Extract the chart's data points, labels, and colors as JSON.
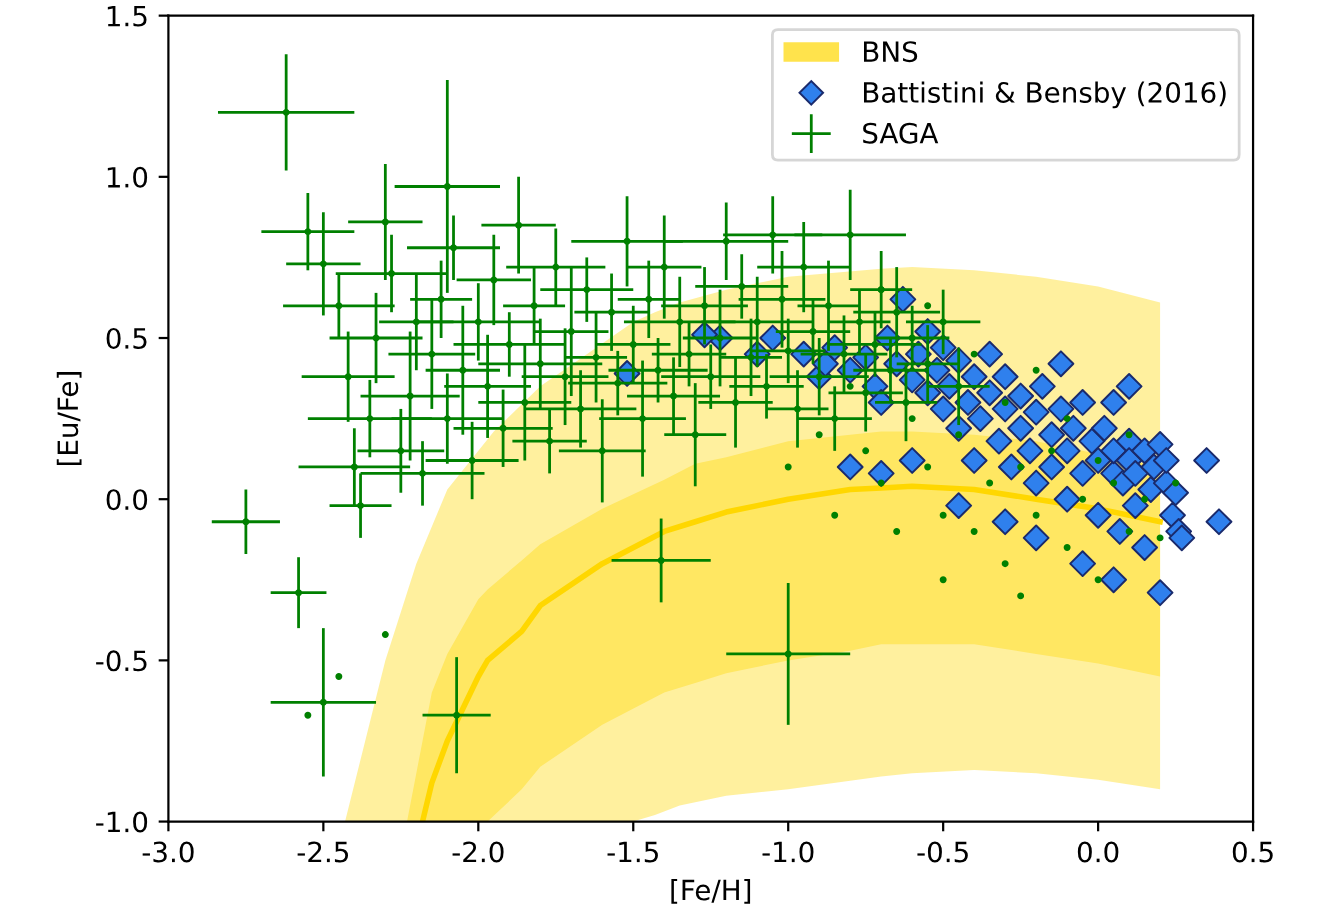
{
  "chart_data": {
    "type": "scatter",
    "xlabel": "[Fe/H]",
    "ylabel": "[Eu/Fe]",
    "xlim": [
      -3.0,
      0.5
    ],
    "ylim": [
      -1.0,
      1.5
    ],
    "xticks": [
      {
        "value": -3,
        "label": "-3.0"
      },
      -2.5,
      {
        "value": -2,
        "label": "-2.0"
      },
      -1.5,
      {
        "value": -1,
        "label": "-1.0"
      },
      -0.5,
      {
        "value": 0,
        "label": "0.0"
      },
      0.5
    ],
    "yticks": [
      {
        "value": -1,
        "label": "-1.0"
      },
      -0.5,
      {
        "value": 0,
        "label": "0.0"
      },
      0.5,
      {
        "value": 1,
        "label": "1.0"
      },
      1.5
    ],
    "legend": "top right",
    "series": [
      {
        "name": "SAGA",
        "color": "#008000",
        "marker": "circle",
        "x": [
          -2.62,
          -2.75,
          -2.58,
          -2.5,
          -2.07,
          -1.41,
          -1.0,
          -2.1,
          -2.55,
          -2.5,
          -2.45,
          -2.42,
          -2.4,
          -2.38,
          -2.35,
          -2.33,
          -2.3,
          -2.28,
          -2.25,
          -2.22,
          -2.2,
          -2.18,
          -2.15,
          -2.12,
          -2.1,
          -2.08,
          -2.05,
          -2.02,
          -2.0,
          -1.97,
          -1.95,
          -1.92,
          -1.9,
          -1.87,
          -1.85,
          -1.82,
          -1.8,
          -1.77,
          -1.75,
          -1.72,
          -1.7,
          -1.67,
          -1.65,
          -1.62,
          -1.6,
          -1.57,
          -1.55,
          -1.52,
          -1.5,
          -1.47,
          -1.45,
          -1.42,
          -1.4,
          -1.37,
          -1.35,
          -1.32,
          -1.3,
          -1.27,
          -1.25,
          -1.22,
          -1.2,
          -1.17,
          -1.15,
          -1.12,
          -1.1,
          -1.07,
          -1.05,
          -1.02,
          -1.0,
          -0.97,
          -0.95,
          -0.92,
          -0.9,
          -0.87,
          -0.85,
          -0.82,
          -0.8,
          -0.77,
          -0.75,
          -0.72,
          -0.7,
          -0.67,
          -0.65,
          -0.62,
          -0.6,
          -0.55,
          -0.5,
          -0.45,
          -2.45,
          -2.55,
          -2.3,
          -1.0,
          -0.9,
          -0.85,
          -0.8,
          -0.75,
          -0.7,
          -0.65,
          -0.6,
          -0.55,
          -0.5,
          -0.45,
          -0.4,
          -0.4,
          -0.35,
          -0.3,
          -0.3,
          -0.25,
          -0.2,
          -0.2,
          -0.15,
          -0.1,
          -0.1,
          -0.05,
          0.0,
          0.0,
          0.05,
          0.1,
          0.1,
          0.15,
          0.2,
          0.25,
          -0.55,
          -0.7,
          -0.5,
          -0.25
        ],
        "values": [
          1.2,
          -0.07,
          -0.29,
          -0.63,
          -0.67,
          -0.19,
          -0.48,
          0.97,
          0.83,
          0.73,
          0.6,
          0.38,
          0.1,
          -0.02,
          0.25,
          0.5,
          0.86,
          0.7,
          0.15,
          0.32,
          0.55,
          0.08,
          0.45,
          0.62,
          0.25,
          0.78,
          0.4,
          0.12,
          0.55,
          0.35,
          0.68,
          0.22,
          0.48,
          0.85,
          0.3,
          0.6,
          0.42,
          0.18,
          0.72,
          0.38,
          0.52,
          0.28,
          0.65,
          0.44,
          0.15,
          0.58,
          0.36,
          0.8,
          0.48,
          0.25,
          0.62,
          0.4,
          0.72,
          0.32,
          0.55,
          0.45,
          0.2,
          0.6,
          0.38,
          0.5,
          0.8,
          0.3,
          0.66,
          0.44,
          0.55,
          0.35,
          0.82,
          0.62,
          0.46,
          0.28,
          0.72,
          0.52,
          0.38,
          0.6,
          0.25,
          0.45,
          0.82,
          0.55,
          0.33,
          0.48,
          0.65,
          0.4,
          0.58,
          0.3,
          0.5,
          0.42,
          0.55,
          0.35,
          -0.55,
          -0.67,
          -0.42,
          0.1,
          0.2,
          -0.05,
          0.35,
          0.15,
          0.05,
          -0.1,
          0.25,
          0.1,
          -0.05,
          0.2,
          0.45,
          -0.1,
          0.05,
          0.3,
          -0.2,
          0.1,
          -0.05,
          0.4,
          0.15,
          -0.15,
          0.25,
          0.0,
          0.12,
          -0.25,
          0.05,
          -0.1,
          0.2,
          0.0,
          -0.12,
          0.05,
          0.6,
          0.65,
          -0.25,
          -0.3
        ],
        "xerrors": [
          0.22,
          0.11,
          0.09,
          0.17,
          0.11,
          0.16,
          0.2,
          0.17,
          0.15,
          0.12,
          0.18,
          0.15,
          0.18,
          0.1,
          0.2,
          0.15,
          0.12,
          0.18,
          0.14,
          0.16,
          0.12,
          0.2,
          0.14,
          0.1,
          0.18,
          0.15,
          0.12,
          0.15,
          0.2,
          0.14,
          0.12,
          0.16,
          0.18,
          0.12,
          0.15,
          0.1,
          0.2,
          0.12,
          0.16,
          0.14,
          0.12,
          0.18,
          0.15,
          0.1,
          0.14,
          0.12,
          0.16,
          0.18,
          0.12,
          0.14,
          0.1,
          0.16,
          0.12,
          0.15,
          0.18,
          0.12,
          0.1,
          0.14,
          0.16,
          0.12,
          0.2,
          0.12,
          0.15,
          0.1,
          0.18,
          0.12,
          0.16,
          0.14,
          0.12,
          0.1,
          0.15,
          0.12,
          0.16,
          0.1,
          0.12,
          0.14,
          0.18,
          0.1,
          0.12,
          0.15,
          0.1,
          0.12,
          0.14,
          0.1,
          0.12,
          0.1,
          0.12,
          0.1,
          null,
          null,
          null,
          null,
          null,
          null,
          null,
          null,
          null,
          null,
          null,
          null,
          null,
          null,
          null,
          null,
          null,
          null,
          null,
          null,
          null,
          null,
          null,
          null,
          null,
          null,
          null,
          null,
          null,
          null,
          null,
          null,
          null,
          null,
          null,
          null,
          null,
          null
        ],
        "errors": [
          0.18,
          0.1,
          0.11,
          0.23,
          0.18,
          0.13,
          0.22,
          0.33,
          0.12,
          0.16,
          0.1,
          0.14,
          0.12,
          0.1,
          0.12,
          0.14,
          0.18,
          0.12,
          0.13,
          0.2,
          0.15,
          0.1,
          0.17,
          0.12,
          0.14,
          0.1,
          0.2,
          0.12,
          0.12,
          0.16,
          0.14,
          0.12,
          0.1,
          0.15,
          0.18,
          0.12,
          0.14,
          0.1,
          0.12,
          0.15,
          0.2,
          0.12,
          0.1,
          0.14,
          0.16,
          0.12,
          0.1,
          0.14,
          0.12,
          0.18,
          0.12,
          0.1,
          0.16,
          0.12,
          0.14,
          0.1,
          0.16,
          0.12,
          0.1,
          0.15,
          0.12,
          0.14,
          0.1,
          0.12,
          0.14,
          0.1,
          0.12,
          0.15,
          0.1,
          0.12,
          0.14,
          0.1,
          0.12,
          0.14,
          0.1,
          0.12,
          0.14,
          0.1,
          0.12,
          0.1,
          0.12,
          0.1,
          0.14,
          0.12,
          0.1,
          0.12,
          0.1,
          0.12,
          null,
          null,
          null,
          null,
          null,
          null,
          null,
          null,
          null,
          null,
          null,
          null,
          null,
          null,
          null,
          null,
          null,
          null,
          null,
          null,
          null,
          null,
          null,
          null,
          null,
          null,
          null,
          null,
          null,
          null,
          null,
          null,
          null,
          null,
          null,
          null,
          null,
          null
        ]
      },
      {
        "name": "Battistini & Bensby (2016)",
        "color": "#2f80ed",
        "marker": "diamond",
        "x": [
          -1.52,
          -1.22,
          -1.27,
          -1.05,
          -1.1,
          -0.95,
          -0.9,
          -0.88,
          -0.85,
          -0.8,
          -0.75,
          -0.72,
          -0.7,
          -0.68,
          -0.65,
          -0.63,
          -0.6,
          -0.58,
          -0.55,
          -0.55,
          -0.52,
          -0.5,
          -0.5,
          -0.48,
          -0.45,
          -0.45,
          -0.42,
          -0.4,
          -0.4,
          -0.38,
          -0.35,
          -0.35,
          -0.32,
          -0.3,
          -0.3,
          -0.28,
          -0.25,
          -0.25,
          -0.22,
          -0.2,
          -0.2,
          -0.18,
          -0.15,
          -0.15,
          -0.12,
          -0.1,
          -0.1,
          -0.08,
          -0.05,
          -0.05,
          -0.02,
          0.0,
          0.0,
          0.02,
          0.05,
          0.05,
          0.07,
          0.08,
          0.1,
          0.1,
          0.12,
          0.12,
          0.15,
          0.15,
          0.17,
          0.18,
          0.2,
          0.2,
          0.22,
          0.22,
          0.24,
          0.25,
          0.26,
          0.27,
          0.35,
          0.39,
          -0.8,
          -0.7,
          -0.6,
          -0.45,
          -0.3,
          -0.2,
          -0.05,
          0.05,
          -0.12,
          0.05,
          0.1
        ],
        "values": [
          0.39,
          0.5,
          0.51,
          0.5,
          0.45,
          0.45,
          0.38,
          0.42,
          0.47,
          0.4,
          0.44,
          0.35,
          0.3,
          0.5,
          0.42,
          0.62,
          0.37,
          0.45,
          0.33,
          0.52,
          0.4,
          0.28,
          0.47,
          0.35,
          0.43,
          0.22,
          0.3,
          0.38,
          0.12,
          0.25,
          0.33,
          0.45,
          0.18,
          0.28,
          0.38,
          0.1,
          0.22,
          0.32,
          0.15,
          0.27,
          0.05,
          0.35,
          0.2,
          0.1,
          0.28,
          0.15,
          0.0,
          0.22,
          0.3,
          0.08,
          0.18,
          0.12,
          -0.05,
          0.22,
          0.08,
          0.15,
          -0.1,
          0.05,
          0.18,
          0.12,
          -0.02,
          0.08,
          0.15,
          -0.15,
          0.03,
          0.1,
          -0.29,
          0.17,
          0.05,
          0.12,
          -0.05,
          0.02,
          -0.1,
          -0.12,
          0.12,
          -0.07,
          0.1,
          0.08,
          0.12,
          -0.02,
          -0.07,
          -0.12,
          -0.2,
          -0.25,
          0.42,
          0.3,
          0.35
        ]
      },
      {
        "name": "BNS",
        "type": "line",
        "color": "#ffd700",
        "x": [
          -2.23,
          -2.18,
          -2.15,
          -2.1,
          -2.0,
          -1.97,
          -1.86,
          -1.8,
          -1.6,
          -1.4,
          -1.3,
          -1.2,
          -1.0,
          -0.8,
          -0.7,
          -0.6,
          -0.4,
          -0.2,
          0.0,
          0.2
        ],
        "values": [
          null,
          -1.0,
          -0.88,
          -0.75,
          -0.55,
          -0.5,
          -0.41,
          -0.33,
          -0.2,
          -0.1,
          -0.07,
          -0.04,
          0.0,
          0.03,
          0.035,
          0.04,
          0.03,
          0.0,
          -0.03,
          -0.07
        ],
        "upper": [
          -1.0,
          -0.75,
          -0.6,
          -0.48,
          -0.31,
          -0.28,
          -0.19,
          -0.14,
          -0.03,
          0.06,
          0.11,
          0.13,
          0.18,
          0.2,
          0.21,
          0.21,
          0.2,
          0.18,
          0.14,
          0.1
        ],
        "lower": [
          -1.0,
          -1.0,
          -1.0,
          -1.0,
          -1.0,
          -1.0,
          -0.9,
          -0.83,
          -0.7,
          -0.6,
          -0.57,
          -0.54,
          -0.5,
          -0.47,
          -0.45,
          -0.45,
          -0.45,
          -0.48,
          -0.51,
          -0.55
        ]
      },
      {
        "type": "line",
        "color": "#ffd700",
        "x": [
          -2.43,
          -2.3,
          -2.2,
          -2.1,
          -1.95,
          -1.8,
          -1.65,
          -1.5,
          -1.43,
          -1.35,
          -1.2,
          -1.0,
          -0.7,
          -0.6,
          -0.4,
          -0.2,
          0.0,
          0.2
        ],
        "values": [
          null,
          null,
          null,
          null,
          null,
          null,
          null,
          null,
          null,
          null,
          null,
          null,
          null,
          null,
          null,
          null,
          null,
          null
        ],
        "upper": [
          -1.0,
          -0.5,
          -0.2,
          0.03,
          0.21,
          0.35,
          0.45,
          0.55,
          0.58,
          0.61,
          0.65,
          0.69,
          0.715,
          0.72,
          0.71,
          0.69,
          0.66,
          0.61
        ],
        "lower": [
          -1.0,
          -1.0,
          -1.0,
          -1.0,
          -1.0,
          -1.0,
          -1.0,
          -1.0,
          -0.98,
          -0.95,
          -0.92,
          -0.9,
          -0.86,
          -0.85,
          -0.84,
          -0.85,
          -0.87,
          -0.9
        ]
      }
    ]
  }
}
